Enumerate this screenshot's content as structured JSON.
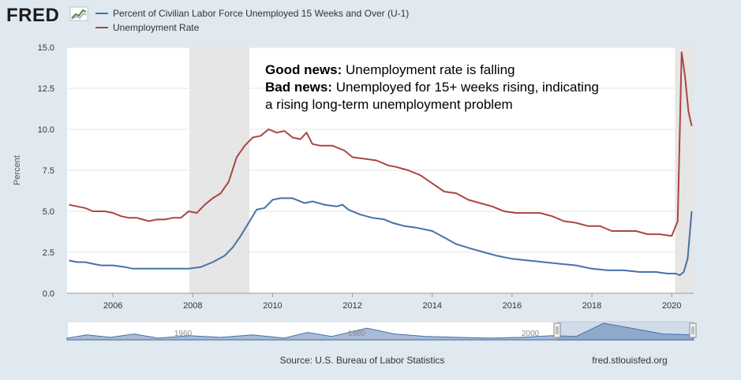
{
  "logo": "FRED",
  "footer": {
    "source": "Source: U.S. Bureau of Labor Statistics",
    "site": "fred.stlouisfed.org"
  },
  "navigator": {
    "labels": [
      "1960",
      "1980",
      "2000"
    ]
  },
  "colors": {
    "u1": "#4572a7",
    "unrate": "#aa4643",
    "recession": "#e6e6e6",
    "background": "#e1e9f0",
    "plot": "#ffffff"
  },
  "chart_data": {
    "type": "line",
    "ylabel": "Percent",
    "ylim": [
      0,
      15
    ],
    "xlim": [
      2004.85,
      2020.55
    ],
    "yticks": [
      "0.0",
      "2.5",
      "5.0",
      "7.5",
      "10.0",
      "12.5",
      "15.0"
    ],
    "xticks": [
      "2006",
      "2008",
      "2010",
      "2012",
      "2014",
      "2016",
      "2018",
      "2020"
    ],
    "grid": true,
    "legend_position": "top-left",
    "recessions": [
      [
        2007.917,
        2009.417
      ],
      [
        2020.083,
        2020.55
      ]
    ],
    "annotation": {
      "line1_bold": "Good news:",
      "line1_text": " Unemployment rate is falling",
      "line2_bold": "Bad news:",
      "line2_text": " Unemployed for 15+ weeks rising, indicating",
      "line3_text": "a rising long-term unemployment problem"
    },
    "series": [
      {
        "name": "Percent of Civilian Labor Force Unemployed 15 Weeks and Over (U-1)",
        "color": "#4572a7",
        "points": [
          [
            2004.9,
            2.0
          ],
          [
            2005.1,
            1.9
          ],
          [
            2005.3,
            1.9
          ],
          [
            2005.5,
            1.8
          ],
          [
            2005.7,
            1.7
          ],
          [
            2006.0,
            1.7
          ],
          [
            2006.3,
            1.6
          ],
          [
            2006.5,
            1.5
          ],
          [
            2006.8,
            1.5
          ],
          [
            2007.0,
            1.5
          ],
          [
            2007.5,
            1.5
          ],
          [
            2007.9,
            1.5
          ],
          [
            2008.2,
            1.6
          ],
          [
            2008.5,
            1.9
          ],
          [
            2008.8,
            2.3
          ],
          [
            2009.0,
            2.8
          ],
          [
            2009.2,
            3.5
          ],
          [
            2009.4,
            4.3
          ],
          [
            2009.6,
            5.1
          ],
          [
            2009.8,
            5.2
          ],
          [
            2010.0,
            5.7
          ],
          [
            2010.2,
            5.8
          ],
          [
            2010.5,
            5.8
          ],
          [
            2010.8,
            5.5
          ],
          [
            2011.0,
            5.6
          ],
          [
            2011.3,
            5.4
          ],
          [
            2011.6,
            5.3
          ],
          [
            2011.75,
            5.4
          ],
          [
            2011.9,
            5.1
          ],
          [
            2012.2,
            4.8
          ],
          [
            2012.5,
            4.6
          ],
          [
            2012.8,
            4.5
          ],
          [
            2013.0,
            4.3
          ],
          [
            2013.3,
            4.1
          ],
          [
            2013.6,
            4.0
          ],
          [
            2014.0,
            3.8
          ],
          [
            2014.3,
            3.4
          ],
          [
            2014.6,
            3.0
          ],
          [
            2015.0,
            2.7
          ],
          [
            2015.3,
            2.5
          ],
          [
            2015.6,
            2.3
          ],
          [
            2016.0,
            2.1
          ],
          [
            2016.4,
            2.0
          ],
          [
            2016.8,
            1.9
          ],
          [
            2017.2,
            1.8
          ],
          [
            2017.6,
            1.7
          ],
          [
            2018.0,
            1.5
          ],
          [
            2018.4,
            1.4
          ],
          [
            2018.8,
            1.4
          ],
          [
            2019.2,
            1.3
          ],
          [
            2019.6,
            1.3
          ],
          [
            2019.9,
            1.2
          ],
          [
            2020.1,
            1.2
          ],
          [
            2020.2,
            1.1
          ],
          [
            2020.3,
            1.3
          ],
          [
            2020.4,
            2.1
          ],
          [
            2020.5,
            5.0
          ]
        ]
      },
      {
        "name": "Unemployment Rate",
        "color": "#aa4643",
        "points": [
          [
            2004.9,
            5.4
          ],
          [
            2005.1,
            5.3
          ],
          [
            2005.3,
            5.2
          ],
          [
            2005.5,
            5.0
          ],
          [
            2005.8,
            5.0
          ],
          [
            2006.0,
            4.9
          ],
          [
            2006.2,
            4.7
          ],
          [
            2006.4,
            4.6
          ],
          [
            2006.6,
            4.6
          ],
          [
            2006.9,
            4.4
          ],
          [
            2007.1,
            4.5
          ],
          [
            2007.3,
            4.5
          ],
          [
            2007.5,
            4.6
          ],
          [
            2007.7,
            4.6
          ],
          [
            2007.9,
            5.0
          ],
          [
            2008.1,
            4.9
          ],
          [
            2008.3,
            5.4
          ],
          [
            2008.5,
            5.8
          ],
          [
            2008.7,
            6.1
          ],
          [
            2008.9,
            6.8
          ],
          [
            2009.1,
            8.3
          ],
          [
            2009.3,
            9.0
          ],
          [
            2009.5,
            9.5
          ],
          [
            2009.7,
            9.6
          ],
          [
            2009.9,
            10.0
          ],
          [
            2010.1,
            9.8
          ],
          [
            2010.3,
            9.9
          ],
          [
            2010.5,
            9.5
          ],
          [
            2010.7,
            9.4
          ],
          [
            2010.85,
            9.8
          ],
          [
            2011.0,
            9.1
          ],
          [
            2011.2,
            9.0
          ],
          [
            2011.5,
            9.0
          ],
          [
            2011.8,
            8.7
          ],
          [
            2012.0,
            8.3
          ],
          [
            2012.3,
            8.2
          ],
          [
            2012.6,
            8.1
          ],
          [
            2012.9,
            7.8
          ],
          [
            2013.1,
            7.7
          ],
          [
            2013.4,
            7.5
          ],
          [
            2013.7,
            7.2
          ],
          [
            2014.0,
            6.7
          ],
          [
            2014.3,
            6.2
          ],
          [
            2014.6,
            6.1
          ],
          [
            2014.9,
            5.7
          ],
          [
            2015.2,
            5.5
          ],
          [
            2015.5,
            5.3
          ],
          [
            2015.8,
            5.0
          ],
          [
            2016.1,
            4.9
          ],
          [
            2016.4,
            4.9
          ],
          [
            2016.7,
            4.9
          ],
          [
            2017.0,
            4.7
          ],
          [
            2017.3,
            4.4
          ],
          [
            2017.6,
            4.3
          ],
          [
            2017.9,
            4.1
          ],
          [
            2018.2,
            4.1
          ],
          [
            2018.5,
            3.8
          ],
          [
            2018.8,
            3.8
          ],
          [
            2019.1,
            3.8
          ],
          [
            2019.4,
            3.6
          ],
          [
            2019.7,
            3.6
          ],
          [
            2020.0,
            3.5
          ],
          [
            2020.15,
            4.4
          ],
          [
            2020.25,
            14.7
          ],
          [
            2020.33,
            13.3
          ],
          [
            2020.42,
            11.1
          ],
          [
            2020.5,
            10.2
          ]
        ]
      }
    ]
  }
}
